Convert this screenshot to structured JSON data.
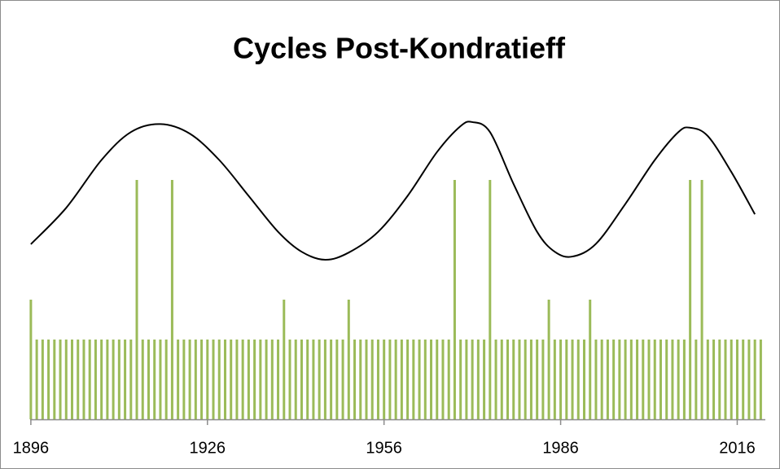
{
  "chart_data": {
    "type": "bar",
    "title": "Cycles Post-Kondratieff",
    "xlim": [
      1895.6,
      2020.5
    ],
    "xticks": [
      1896,
      1926,
      1956,
      1986,
      2016
    ],
    "ylim": [
      0,
      10
    ],
    "series": [
      {
        "type": "bar",
        "color": "#9bbb59",
        "x": [
          1896,
          1897,
          1898,
          1899,
          1900,
          1901,
          1902,
          1903,
          1904,
          1905,
          1906,
          1907,
          1908,
          1909,
          1910,
          1911,
          1912,
          1913,
          1914,
          1915,
          1916,
          1917,
          1918,
          1919,
          1920,
          1921,
          1922,
          1923,
          1924,
          1925,
          1926,
          1927,
          1928,
          1929,
          1930,
          1931,
          1932,
          1933,
          1934,
          1935,
          1936,
          1937,
          1938,
          1939,
          1940,
          1941,
          1942,
          1943,
          1944,
          1945,
          1946,
          1947,
          1948,
          1949,
          1950,
          1951,
          1952,
          1953,
          1954,
          1955,
          1956,
          1957,
          1958,
          1959,
          1960,
          1961,
          1962,
          1963,
          1964,
          1965,
          1966,
          1967,
          1968,
          1969,
          1970,
          1971,
          1972,
          1973,
          1974,
          1975,
          1976,
          1977,
          1978,
          1979,
          1980,
          1981,
          1982,
          1983,
          1984,
          1985,
          1986,
          1987,
          1988,
          1989,
          1990,
          1991,
          1992,
          1993,
          1994,
          1995,
          1996,
          1997,
          1998,
          1999,
          2000,
          2001,
          2002,
          2003,
          2004,
          2005,
          2006,
          2007,
          2008,
          2009,
          2010,
          2011,
          2012,
          2013,
          2014,
          2015,
          2016,
          2017,
          2018,
          2019,
          2020
        ],
        "values": [
          3,
          2,
          2,
          2,
          2,
          2,
          2,
          2,
          2,
          2,
          2,
          2,
          2,
          2,
          2,
          2,
          2,
          2,
          6,
          2,
          2,
          2,
          2,
          2,
          6,
          2,
          2,
          2,
          2,
          2,
          2,
          2,
          2,
          2,
          2,
          2,
          2,
          2,
          2,
          2,
          2,
          2,
          2,
          3,
          2,
          2,
          2,
          2,
          2,
          2,
          2,
          2,
          2,
          2,
          3,
          2,
          2,
          2,
          2,
          2,
          2,
          2,
          2,
          2,
          2,
          2,
          2,
          2,
          2,
          2,
          2,
          2,
          6,
          2,
          2,
          2,
          2,
          2,
          6,
          2,
          2,
          2,
          2,
          2,
          2,
          2,
          2,
          2,
          3,
          2,
          2,
          2,
          2,
          2,
          2,
          3,
          2,
          2,
          2,
          2,
          2,
          2,
          2,
          2,
          2,
          2,
          2,
          2,
          2,
          2,
          2,
          2,
          6,
          2,
          6,
          2,
          2,
          2,
          2,
          2,
          2,
          2,
          2,
          2,
          2
        ]
      },
      {
        "type": "line",
        "color": "#000000",
        "x": [
          1896,
          1902,
          1908,
          1913,
          1918,
          1923,
          1928,
          1933,
          1938,
          1942,
          1946,
          1950,
          1955,
          1960,
          1965,
          1969,
          1971,
          1974,
          1978,
          1982,
          1985,
          1988,
          1992,
          1997,
          2002,
          2006,
          2008,
          2011,
          2015,
          2019
        ],
        "values": [
          4.39,
          5.3,
          6.5,
          7.2,
          7.4,
          7.16,
          6.5,
          5.6,
          4.7,
          4.2,
          4.0,
          4.18,
          4.7,
          5.6,
          6.7,
          7.35,
          7.45,
          7.2,
          5.9,
          4.7,
          4.2,
          4.08,
          4.4,
          5.4,
          6.5,
          7.2,
          7.31,
          7.1,
          6.2,
          5.14
        ]
      }
    ]
  }
}
